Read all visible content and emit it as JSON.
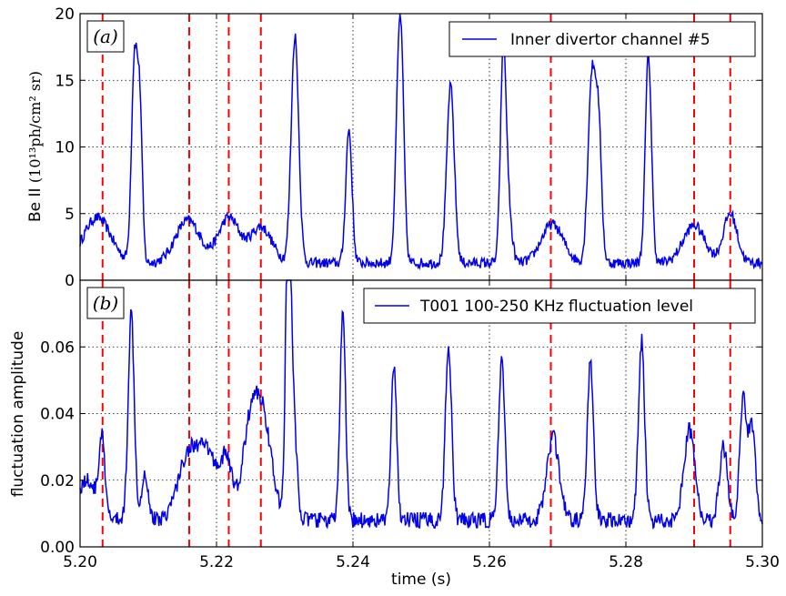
{
  "chart_data": [
    {
      "panel": "a",
      "type": "line",
      "panel_label": "(a)",
      "ylabel_main": "Be II",
      "ylabel_units": "(10¹³ph/cm² sr)",
      "xlabel": "",
      "xlim": [
        5.2,
        5.3
      ],
      "ylim": [
        0,
        20
      ],
      "yticks": [
        "0",
        "5",
        "10",
        "15",
        "20"
      ],
      "xticks": [
        5.2,
        5.22,
        5.24,
        5.26,
        5.28,
        5.3
      ],
      "grid": true,
      "legend_position": "top-right",
      "line_color": "#0000ee",
      "marker_color": "#ff0000",
      "vlines": [
        5.2033,
        5.216,
        5.2218,
        5.2265,
        5.269,
        5.29,
        5.2953
      ],
      "series": [
        {
          "name": "Inner divertor channel #5",
          "baseline": 1.3,
          "peaks": [
            [
              5.2025,
              3.4,
              0.002
            ],
            [
              5.208,
              15.5,
              0.00045
            ],
            [
              5.2088,
              10.0,
              0.00035
            ],
            [
              5.2158,
              3.2,
              0.0018
            ],
            [
              5.2218,
              3.4,
              0.0015
            ],
            [
              5.2265,
              2.7,
              0.0016
            ],
            [
              5.2315,
              17.0,
              0.00055
            ],
            [
              5.2394,
              10.0,
              0.00045
            ],
            [
              5.2467,
              13.0,
              0.00045
            ],
            [
              5.2472,
              9.0,
              0.0004
            ],
            [
              5.2543,
              13.3,
              0.00055
            ],
            [
              5.262,
              12.5,
              0.0004
            ],
            [
              5.2625,
              5.5,
              0.0006
            ],
            [
              5.2692,
              2.9,
              0.0016
            ],
            [
              5.275,
              13.8,
              0.00055
            ],
            [
              5.276,
              9.5,
              0.00045
            ],
            [
              5.2833,
              15.6,
              0.00045
            ],
            [
              5.29,
              2.8,
              0.0016
            ],
            [
              5.2953,
              3.7,
              0.001
            ]
          ]
        }
      ]
    },
    {
      "panel": "b",
      "type": "line",
      "panel_label": "(b)",
      "ylabel": "fluctuation amplitude",
      "xlabel": "time (s)",
      "xlim": [
        5.2,
        5.3
      ],
      "ylim": [
        0,
        0.08
      ],
      "yticks": [
        "0.00",
        "0.02",
        "0.04",
        "0.06"
      ],
      "xticks": [
        "5.20",
        "5.22",
        "5.24",
        "5.26",
        "5.28",
        "5.30"
      ],
      "grid": true,
      "legend_position": "top-right",
      "line_color": "#0000ee",
      "marker_color": "#ff0000",
      "vlines": [
        5.2033,
        5.216,
        5.2218,
        5.2265,
        5.269,
        5.29,
        5.2953
      ],
      "series": [
        {
          "name": "T001 100-250 KHz fluctuation level",
          "baseline": 0.008,
          "peaks": [
            [
              5.201,
              0.012,
              0.0015
            ],
            [
              5.2032,
              0.022,
              0.0004
            ],
            [
              5.2075,
              0.062,
              0.00045
            ],
            [
              5.2095,
              0.014,
              0.0005
            ],
            [
              5.216,
              0.02,
              0.0016
            ],
            [
              5.219,
              0.017,
              0.0014
            ],
            [
              5.2215,
              0.016,
              0.0008
            ],
            [
              5.225,
              0.028,
              0.0012
            ],
            [
              5.227,
              0.026,
              0.0012
            ],
            [
              5.2305,
              0.075,
              0.00035
            ],
            [
              5.231,
              0.04,
              0.0006
            ],
            [
              5.2385,
              0.062,
              0.0004
            ],
            [
              5.246,
              0.046,
              0.0004
            ],
            [
              5.254,
              0.053,
              0.00045
            ],
            [
              5.2618,
              0.047,
              0.00045
            ],
            [
              5.2693,
              0.025,
              0.0009
            ],
            [
              5.2748,
              0.047,
              0.00045
            ],
            [
              5.2823,
              0.054,
              0.00045
            ],
            [
              5.2893,
              0.027,
              0.0008
            ],
            [
              5.2943,
              0.022,
              0.0006
            ],
            [
              5.2972,
              0.036,
              0.0005
            ],
            [
              5.2985,
              0.028,
              0.0005
            ]
          ]
        }
      ]
    }
  ]
}
